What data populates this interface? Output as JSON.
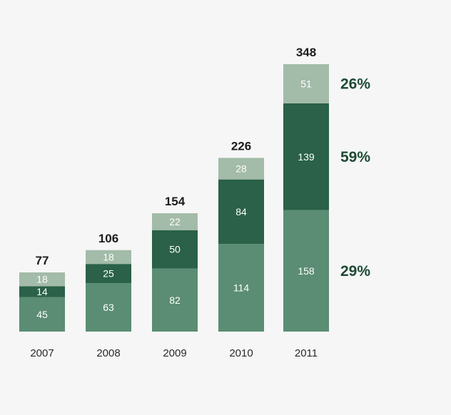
{
  "chart_data": {
    "type": "bar",
    "stacked": true,
    "categories": [
      "2007",
      "2008",
      "2009",
      "2010",
      "2011"
    ],
    "series": [
      {
        "values": [
          45,
          63,
          82,
          114,
          158
        ],
        "color": "#5b8d74"
      },
      {
        "values": [
          14,
          25,
          50,
          84,
          139
        ],
        "color": "#2a6148"
      },
      {
        "values": [
          18,
          18,
          22,
          28,
          51
        ],
        "color": "#a3bba9"
      }
    ],
    "totals": [
      "77",
      "106",
      "154",
      "226",
      "348"
    ],
    "annotations": [
      {
        "series_index": 2,
        "text": "26%"
      },
      {
        "series_index": 1,
        "text": "59%"
      },
      {
        "series_index": 0,
        "text": "29%"
      }
    ],
    "ylim": [
      0,
      348
    ],
    "grid": false,
    "legend": "none"
  }
}
